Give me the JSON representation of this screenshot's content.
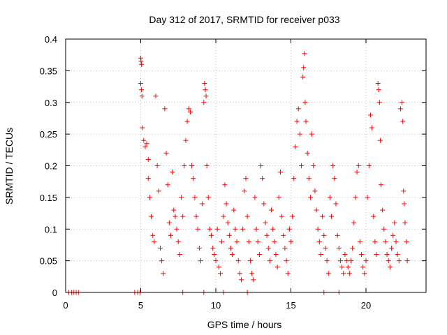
{
  "chart_data": {
    "type": "scatter",
    "title": "Day 312 of 2017, SRMTID for receiver p033",
    "xlabel": "GPS time / hours",
    "ylabel": "SRMTID / TECUs",
    "xlim": [
      0,
      24
    ],
    "ylim": [
      0,
      0.4
    ],
    "xticks": [
      0,
      5,
      10,
      15,
      20
    ],
    "xtick_labels": [
      "0",
      "5",
      "10",
      "15",
      "20"
    ],
    "yticks": [
      0,
      0.05,
      0.1,
      0.15,
      0.2,
      0.25,
      0.3,
      0.35,
      0.4
    ],
    "ytick_labels": [
      "0",
      "0.05",
      "0.1",
      "0.15",
      "0.2",
      "0.25",
      "0.3",
      "0.35",
      "0.4"
    ],
    "grid": true,
    "marker": "+",
    "color": "#ff0000",
    "series": [
      {
        "name": "SRMTID",
        "points": [
          [
            0.2,
            0
          ],
          [
            0.4,
            0
          ],
          [
            0.55,
            0
          ],
          [
            0.7,
            0
          ],
          [
            0.85,
            0
          ],
          [
            4.6,
            0
          ],
          [
            4.8,
            0
          ],
          [
            4.95,
            0
          ],
          [
            7.8,
            0
          ],
          [
            9.2,
            0
          ],
          [
            10.5,
            0
          ],
          [
            12.1,
            0
          ],
          [
            17.2,
            0
          ],
          [
            18.2,
            0
          ],
          [
            5.0,
            0.37
          ],
          [
            5.02,
            0.365
          ],
          [
            5.05,
            0.36
          ],
          [
            5.0,
            0.33
          ],
          [
            5.05,
            0.32
          ],
          [
            5.08,
            0.31
          ],
          [
            5.1,
            0.26
          ],
          [
            5.2,
            0.24
          ],
          [
            5.3,
            0.23
          ],
          [
            5.4,
            0.235
          ],
          [
            5.5,
            0.21
          ],
          [
            5.5,
            0.18
          ],
          [
            5.6,
            0.15
          ],
          [
            5.7,
            0.12
          ],
          [
            5.8,
            0.09
          ],
          [
            5.9,
            0.08
          ],
          [
            6.0,
            0.31
          ],
          [
            6.1,
            0.2
          ],
          [
            6.2,
            0.16
          ],
          [
            6.3,
            0.07
          ],
          [
            6.4,
            0.05
          ],
          [
            6.5,
            0.03
          ],
          [
            6.6,
            0.29
          ],
          [
            6.7,
            0.22
          ],
          [
            6.8,
            0.17
          ],
          [
            6.9,
            0.11
          ],
          [
            7.0,
            0.09
          ],
          [
            7.1,
            0.19
          ],
          [
            7.2,
            0.13
          ],
          [
            7.3,
            0.12
          ],
          [
            7.4,
            0.1
          ],
          [
            7.5,
            0.08
          ],
          [
            7.6,
            0.06
          ],
          [
            7.7,
            0.15
          ],
          [
            7.8,
            0.12
          ],
          [
            7.9,
            0.2
          ],
          [
            8.0,
            0.24
          ],
          [
            8.1,
            0.27
          ],
          [
            8.2,
            0.29
          ],
          [
            8.3,
            0.285
          ],
          [
            8.4,
            0.2
          ],
          [
            8.5,
            0.18
          ],
          [
            8.6,
            0.15
          ],
          [
            8.7,
            0.12
          ],
          [
            8.8,
            0.1
          ],
          [
            8.9,
            0.07
          ],
          [
            9.0,
            0.05
          ],
          [
            9.1,
            0.14
          ],
          [
            9.2,
            0.3
          ],
          [
            9.25,
            0.33
          ],
          [
            9.3,
            0.32
          ],
          [
            9.35,
            0.31
          ],
          [
            9.4,
            0.2
          ],
          [
            9.5,
            0.15
          ],
          [
            9.6,
            0.1
          ],
          [
            9.7,
            0.09
          ],
          [
            9.8,
            0.07
          ],
          [
            9.9,
            0.06
          ],
          [
            10.0,
            0.05
          ],
          [
            10.1,
            0.1
          ],
          [
            10.2,
            0.04
          ],
          [
            10.3,
            0.03
          ],
          [
            10.4,
            0.08
          ],
          [
            10.5,
            0.12
          ],
          [
            10.6,
            0.17
          ],
          [
            10.7,
            0.14
          ],
          [
            10.8,
            0.11
          ],
          [
            10.9,
            0.09
          ],
          [
            11.0,
            0.07
          ],
          [
            11.1,
            0.06
          ],
          [
            11.2,
            0.13
          ],
          [
            11.3,
            0.1
          ],
          [
            11.4,
            0.08
          ],
          [
            11.5,
            0.05
          ],
          [
            11.6,
            0.03
          ],
          [
            11.7,
            0.02
          ],
          [
            11.8,
            0.1
          ],
          [
            11.9,
            0.16
          ],
          [
            12.0,
            0.18
          ],
          [
            12.1,
            0.12
          ],
          [
            12.2,
            0.08
          ],
          [
            12.3,
            0.05
          ],
          [
            12.4,
            0.03
          ],
          [
            12.5,
            0.02
          ],
          [
            12.6,
            0.15
          ],
          [
            12.7,
            0.1
          ],
          [
            12.8,
            0.08
          ],
          [
            12.9,
            0.06
          ],
          [
            13.0,
            0.2
          ],
          [
            13.1,
            0.18
          ],
          [
            13.2,
            0.14
          ],
          [
            13.3,
            0.11
          ],
          [
            13.4,
            0.09
          ],
          [
            13.5,
            0.07
          ],
          [
            13.6,
            0.05
          ],
          [
            13.7,
            0.13
          ],
          [
            13.8,
            0.1
          ],
          [
            13.9,
            0.08
          ],
          [
            14.0,
            0.06
          ],
          [
            14.1,
            0.04
          ],
          [
            14.2,
            0.15
          ],
          [
            14.3,
            0.19
          ],
          [
            14.4,
            0.12
          ],
          [
            14.5,
            0.09
          ],
          [
            14.6,
            0.07
          ],
          [
            14.7,
            0.05
          ],
          [
            14.8,
            0.03
          ],
          [
            14.9,
            0.1
          ],
          [
            15.0,
            0.08
          ],
          [
            15.1,
            0.12
          ],
          [
            15.2,
            0.18
          ],
          [
            15.3,
            0.23
          ],
          [
            15.4,
            0.27
          ],
          [
            15.5,
            0.29
          ],
          [
            15.6,
            0.25
          ],
          [
            15.7,
            0.2
          ],
          [
            15.8,
            0.34
          ],
          [
            15.85,
            0.355
          ],
          [
            15.9,
            0.377
          ],
          [
            15.95,
            0.3
          ],
          [
            16.0,
            0.27
          ],
          [
            16.1,
            0.22
          ],
          [
            16.2,
            0.18
          ],
          [
            16.3,
            0.15
          ],
          [
            16.4,
            0.25
          ],
          [
            16.5,
            0.2
          ],
          [
            16.6,
            0.16
          ],
          [
            16.7,
            0.13
          ],
          [
            16.8,
            0.1
          ],
          [
            16.9,
            0.08
          ],
          [
            17.0,
            0.06
          ],
          [
            17.1,
            0.12
          ],
          [
            17.2,
            0.09
          ],
          [
            17.3,
            0.07
          ],
          [
            17.4,
            0.05
          ],
          [
            17.5,
            0.03
          ],
          [
            17.6,
            0.15
          ],
          [
            17.7,
            0.12
          ],
          [
            17.8,
            0.2
          ],
          [
            17.9,
            0.18
          ],
          [
            18.0,
            0.14
          ],
          [
            18.1,
            0.09
          ],
          [
            18.2,
            0.07
          ],
          [
            18.3,
            0.05
          ],
          [
            18.4,
            0.04
          ],
          [
            18.5,
            0.03
          ],
          [
            18.6,
            0.06
          ],
          [
            18.7,
            0.05
          ],
          [
            18.8,
            0.04
          ],
          [
            18.9,
            0.03
          ],
          [
            19.0,
            0.05
          ],
          [
            19.1,
            0.07
          ],
          [
            19.2,
            0.11
          ],
          [
            19.3,
            0.15
          ],
          [
            19.4,
            0.19
          ],
          [
            19.5,
            0.2
          ],
          [
            19.6,
            0.08
          ],
          [
            19.7,
            0.06
          ],
          [
            19.8,
            0.04
          ],
          [
            19.9,
            0.03
          ],
          [
            20.0,
            0.05
          ],
          [
            20.1,
            0.15
          ],
          [
            20.2,
            0.2
          ],
          [
            20.3,
            0.28
          ],
          [
            20.4,
            0.26
          ],
          [
            20.5,
            0.12
          ],
          [
            20.6,
            0.08
          ],
          [
            20.7,
            0.06
          ],
          [
            20.8,
            0.33
          ],
          [
            20.85,
            0.32
          ],
          [
            20.9,
            0.3
          ],
          [
            20.95,
            0.24
          ],
          [
            21.0,
            0.17
          ],
          [
            21.1,
            0.13
          ],
          [
            21.2,
            0.1
          ],
          [
            21.3,
            0.08
          ],
          [
            21.4,
            0.06
          ],
          [
            21.5,
            0.05
          ],
          [
            21.6,
            0.04
          ],
          [
            21.7,
            0.07
          ],
          [
            21.8,
            0.09
          ],
          [
            21.9,
            0.11
          ],
          [
            22.0,
            0.08
          ],
          [
            22.1,
            0.06
          ],
          [
            22.2,
            0.05
          ],
          [
            22.3,
            0.29
          ],
          [
            22.4,
            0.3
          ],
          [
            22.45,
            0.27
          ],
          [
            22.5,
            0.16
          ],
          [
            22.55,
            0.14
          ],
          [
            22.6,
            0.11
          ],
          [
            22.7,
            0.08
          ],
          [
            22.75,
            0.05
          ]
        ]
      }
    ]
  }
}
